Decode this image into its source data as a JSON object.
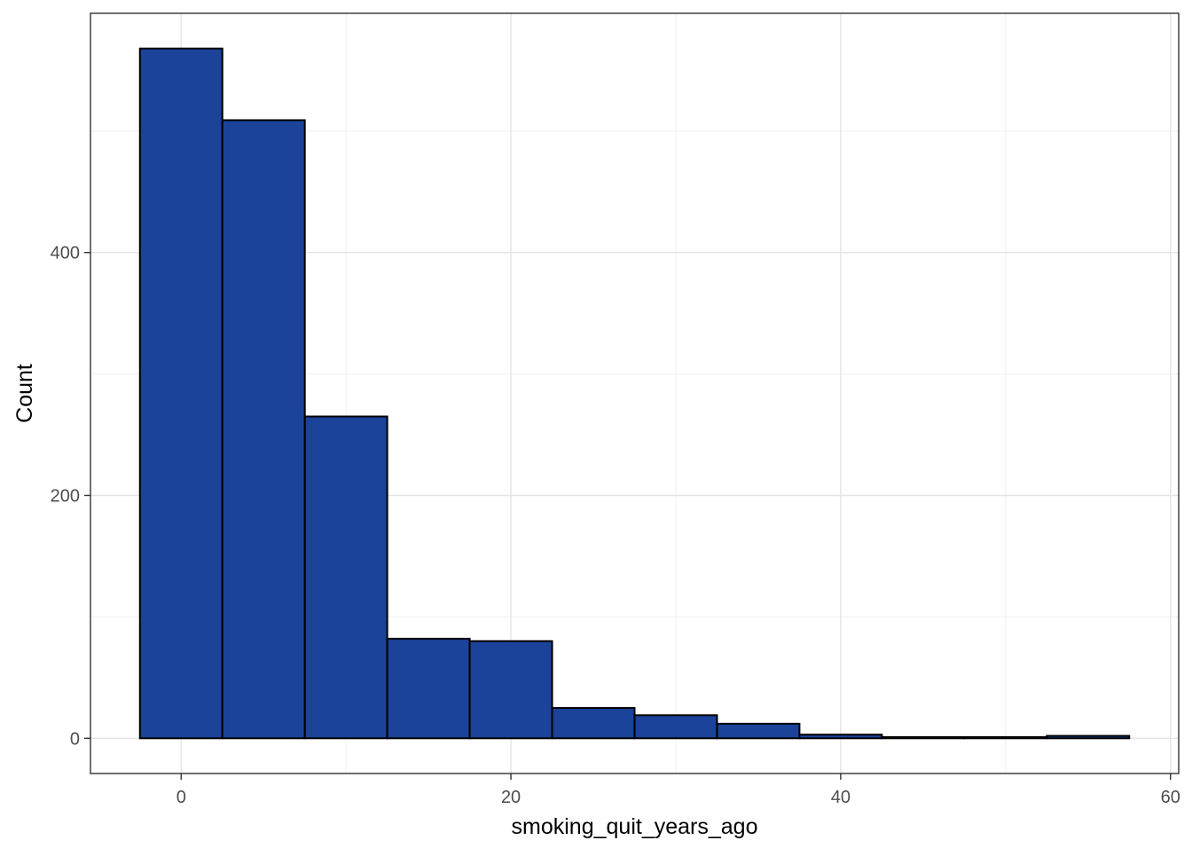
{
  "chart_data": {
    "type": "histogram",
    "xlabel": "smoking_quit_years_ago",
    "ylabel": "Count",
    "bin_width": 5,
    "bins": [
      {
        "from": -2.5,
        "to": 2.5,
        "count": 568
      },
      {
        "from": 2.5,
        "to": 7.5,
        "count": 509
      },
      {
        "from": 7.5,
        "to": 12.5,
        "count": 265
      },
      {
        "from": 12.5,
        "to": 17.5,
        "count": 82
      },
      {
        "from": 17.5,
        "to": 22.5,
        "count": 80
      },
      {
        "from": 22.5,
        "to": 27.5,
        "count": 25
      },
      {
        "from": 27.5,
        "to": 32.5,
        "count": 19
      },
      {
        "from": 32.5,
        "to": 37.5,
        "count": 12
      },
      {
        "from": 37.5,
        "to": 42.5,
        "count": 3
      },
      {
        "from": 42.5,
        "to": 47.5,
        "count": 1
      },
      {
        "from": 47.5,
        "to": 52.5,
        "count": 1
      },
      {
        "from": 52.5,
        "to": 57.5,
        "count": 2
      }
    ],
    "xlim": [
      -5.5,
      60.5
    ],
    "ylim": [
      -29,
      597
    ],
    "x_ticks": [
      0,
      20,
      40,
      60
    ],
    "x_minor_ticks": [
      10,
      30,
      50
    ],
    "y_ticks": [
      0,
      200,
      400
    ],
    "y_minor_ticks": [
      100,
      300,
      500
    ],
    "grid": true,
    "bar_fill": "#1a4399",
    "bar_outline": "#000000",
    "panel_border": "#333333"
  }
}
